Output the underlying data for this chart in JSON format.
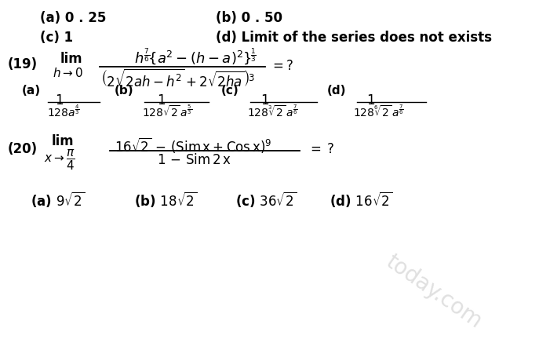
{
  "bg_color": "#ffffff",
  "text_color": "#000000",
  "figsize": [
    6.87,
    4.37
  ],
  "dpi": 100,
  "watermark": "today.com",
  "row1_a": "(a) 0 . 25",
  "row1_b": "(b) 0 . 50",
  "row2_c": "(c) 1",
  "row2_d": "(d) Limit of the series does not exists",
  "q19_label": "(19)",
  "q20_label": "(20)",
  "watermark_color": "#bbbbbb",
  "fs_main": 12,
  "fs_math": 12
}
